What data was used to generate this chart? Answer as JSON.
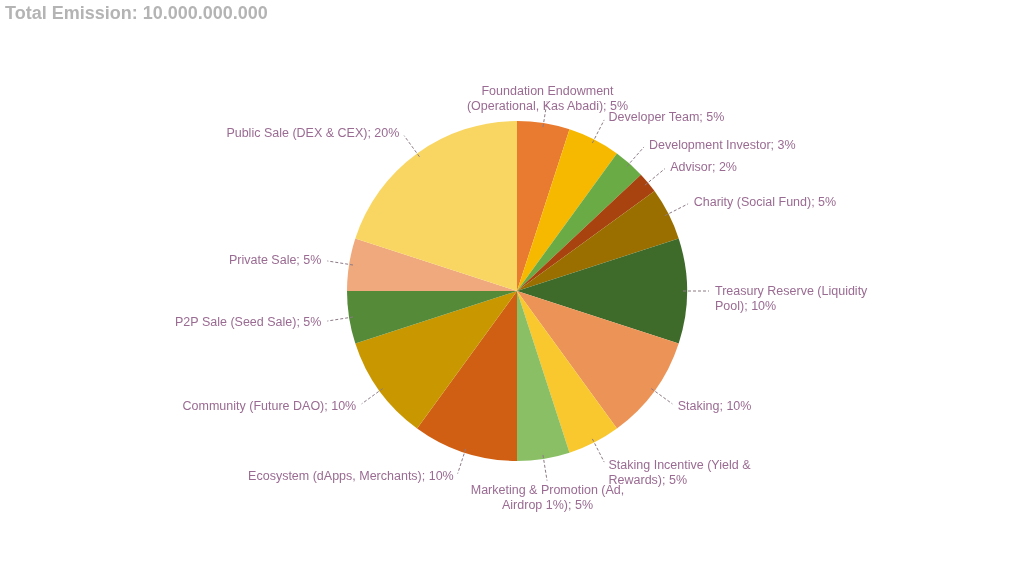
{
  "chart_data": {
    "type": "pie",
    "title": "Total Emission: 10.000.000.000",
    "categories": [
      "Foundation Endowment (Operational, Kas Abadi)",
      "Developer Team",
      "Development Investor",
      "Advisor",
      "Charity (Social Fund)",
      "Treasury Reserve (Liquidity Pool)",
      "Staking",
      "Staking Incentive (Yield & Rewards)",
      "Marketing & Promotion (Ad, Airdrop 1%)",
      "Ecosystem (dApps, Merchants)",
      "Community (Future DAO)",
      "P2P Sale (Seed Sale)",
      "Private Sale",
      "Public Sale (DEX & CEX)"
    ],
    "values": [
      5,
      5,
      3,
      2,
      5,
      10,
      10,
      5,
      5,
      10,
      10,
      5,
      5,
      20
    ],
    "value_labels": [
      "5%",
      "5%",
      "3%",
      "2%",
      "5%",
      "10%",
      "10%",
      "5%",
      "5%",
      "10%",
      "10%",
      "5%",
      "5%",
      "20%"
    ],
    "colors": [
      "#e87b2f",
      "#f7b900",
      "#6aab45",
      "#a8420f",
      "#9a6f00",
      "#3f6b2a",
      "#ec9457",
      "#f8c82e",
      "#8abf66",
      "#d15f13",
      "#c99700",
      "#548a38",
      "#f0a97c",
      "#f9d662"
    ],
    "legend": false
  }
}
